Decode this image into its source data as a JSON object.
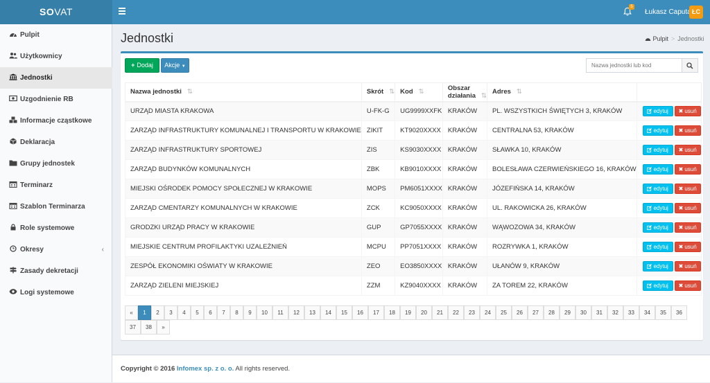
{
  "app": {
    "logo_left": "SO",
    "logo_right": "VAT",
    "notification_count": "5",
    "user_name": "Łukasz Caputa",
    "user_initials": "ŁC"
  },
  "sidebar": {
    "items": [
      {
        "label": "Pulpit",
        "icon": "dashboard-icon"
      },
      {
        "label": "Użytkownicy",
        "icon": "users-icon"
      },
      {
        "label": "Jednostki",
        "icon": "institution-icon",
        "active": true
      },
      {
        "label": "Uzgodnienie RB",
        "icon": "money-icon"
      },
      {
        "label": "Informacje cząstkowe",
        "icon": "cubes-icon"
      },
      {
        "label": "Deklaracja",
        "icon": "cube-icon"
      },
      {
        "label": "Grupy jednostek",
        "icon": "folder-icon"
      },
      {
        "label": "Terminarz",
        "icon": "calendar-icon"
      },
      {
        "label": "Szablon Terminarza",
        "icon": "calendar-icon"
      },
      {
        "label": "Role systemowe",
        "icon": "lock-icon"
      },
      {
        "label": "Okresy",
        "icon": "clock-icon"
      },
      {
        "label": "Zasady dekretacji",
        "icon": "signpost-icon"
      },
      {
        "label": "Logi systemowe",
        "icon": "eye-icon"
      }
    ]
  },
  "page": {
    "title": "Jednostki",
    "breadcrumb_home": "Pulpit",
    "breadcrumb_current": "Jednostki"
  },
  "toolbar": {
    "add_label": "Dodaj",
    "actions_label": "Akcje",
    "search_placeholder": "Nazwa jednostki lub kod"
  },
  "table": {
    "headers": {
      "name": "Nazwa jednostki",
      "short": "Skrót",
      "code": "Kod",
      "area": "Obszar działania",
      "address": "Adres"
    },
    "edit_label": "edytuj",
    "delete_label": "usuń",
    "rows": [
      {
        "name": "URZĄD MIASTA KRAKOWA",
        "short": "U-FK-G",
        "code": "UG9999XXFK",
        "area": "KRAKÓW",
        "address": "PL. WSZYSTKICH ŚWIĘTYCH 3, KRAKÓW"
      },
      {
        "name": "ZARZĄD INFRASTRUKTURY KOMUNALNEJ I TRANSPORTU W KRAKOWIE",
        "short": "ZIKIT",
        "code": "KT9020XXXX",
        "area": "KRAKÓW",
        "address": "CENTRALNA 53, KRAKÓW"
      },
      {
        "name": "ZARZĄD INFRASTRUKTURY SPORTOWEJ",
        "short": "ZIS",
        "code": "KS9030XXXX",
        "area": "KRAKÓW",
        "address": "SŁAWKA 10, KRAKÓW"
      },
      {
        "name": "ZARZĄD BUDYNKÓW KOMUNALNYCH",
        "short": "ZBK",
        "code": "KB9010XXXX",
        "area": "KRAKÓW",
        "address": "BOLESŁAWA CZERWIEŃSKIEGO 16, KRAKÓW"
      },
      {
        "name": "MIEJSKI OŚRODEK POMOCY SPOŁECZNEJ W KRAKOWIE",
        "short": "MOPS",
        "code": "PM6051XXXX",
        "area": "KRAKÓW",
        "address": "JÓZEFIŃSKA 14, KRAKÓW"
      },
      {
        "name": "ZARZĄD CMENTARZY KOMUNALNYCH W KRAKOWIE",
        "short": "ZCK",
        "code": "KC9050XXXX",
        "area": "KRAKÓW",
        "address": "UL. RAKOWICKA 26, KRAKÓW"
      },
      {
        "name": "GRODZKI URZĄD PRACY W KRAKOWIE",
        "short": "GUP",
        "code": "GP7055XXXX",
        "area": "KRAKÓW",
        "address": "WĄWOZOWA 34, KRAKÓW"
      },
      {
        "name": "MIEJSKIE CENTRUM PROFILAKTYKI UZALEŻNIEŃ",
        "short": "MCPU",
        "code": "PP7051XXXX",
        "area": "KRAKÓW",
        "address": "ROZRYWKA 1, KRAKÓW"
      },
      {
        "name": "ZESPÓŁ EKONOMIKI OŚWIATY W KRAKOWIE",
        "short": "ZEO",
        "code": "EO3850XXXX",
        "area": "KRAKÓW",
        "address": "UŁANÓW 9, KRAKÓW"
      },
      {
        "name": "ZARZĄD ZIELENI MIEJSKIEJ",
        "short": "ZZM",
        "code": "KZ9040XXXX",
        "area": "KRAKÓW",
        "address": "ZA TOREM 22, KRAKÓW"
      }
    ]
  },
  "pagination": {
    "prev": "«",
    "next": "»",
    "pages": [
      "1",
      "2",
      "3",
      "4",
      "5",
      "6",
      "7",
      "8",
      "9",
      "10",
      "11",
      "12",
      "13",
      "14",
      "15",
      "16",
      "17",
      "18",
      "19",
      "20",
      "21",
      "22",
      "23",
      "24",
      "25",
      "26",
      "27",
      "28",
      "29",
      "30",
      "31",
      "32",
      "33",
      "34",
      "35",
      "36",
      "37",
      "38"
    ],
    "current": "1"
  },
  "footer": {
    "copyright": "Copyright © 2016",
    "company": "Infomex sp. z o. o.",
    "rights": "All rights reserved."
  },
  "colors": {
    "header": "#3c8dbc",
    "logo_bg": "#367fa9",
    "add_button": "#00a65a",
    "edit_button": "#00c0ef",
    "delete_button": "#dd4b39",
    "avatar": "#f39c12"
  }
}
